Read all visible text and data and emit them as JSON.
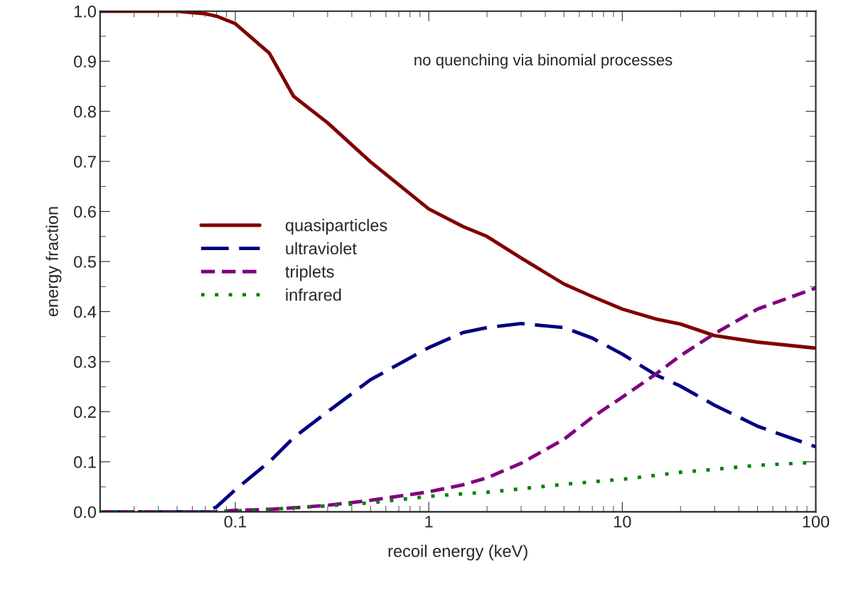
{
  "chart_data": {
    "type": "line",
    "xlabel": "recoil energy (keV)",
    "ylabel": "energy fraction",
    "annotations": [
      "no quenching via binomial processes"
    ],
    "x": [
      0.02,
      0.05,
      0.07,
      0.08,
      0.1,
      0.15,
      0.2,
      0.3,
      0.5,
      1,
      1.5,
      2,
      3,
      5,
      7,
      10,
      15,
      20,
      30,
      50,
      100
    ],
    "series": [
      {
        "name": "quasiparticles",
        "color": "#800000",
        "line_style": "solid",
        "values": [
          1.0,
          1.0,
          0.995,
          0.99,
          0.975,
          0.916,
          0.83,
          0.777,
          0.699,
          0.605,
          0.57,
          0.55,
          0.507,
          0.455,
          0.43,
          0.405,
          0.385,
          0.375,
          0.352,
          0.339,
          0.327
        ]
      },
      {
        "name": "ultraviolet",
        "color": "#000080",
        "line_style": "dashed",
        "values": [
          0,
          0,
          0,
          0.01,
          0.044,
          0.1,
          0.148,
          0.2,
          0.264,
          0.328,
          0.358,
          0.368,
          0.376,
          0.368,
          0.347,
          0.315,
          0.273,
          0.251,
          0.213,
          0.171,
          0.13
        ]
      },
      {
        "name": "triplets",
        "color": "#800080",
        "line_style": "dashed",
        "values": [
          0,
          0,
          0,
          0,
          0.003,
          0.005,
          0.008,
          0.013,
          0.023,
          0.04,
          0.054,
          0.068,
          0.097,
          0.145,
          0.189,
          0.229,
          0.276,
          0.312,
          0.356,
          0.405,
          0.447
        ]
      },
      {
        "name": "infrared",
        "color": "#008000",
        "line_style": "dotted",
        "values": [
          0,
          0,
          0,
          0,
          0.002,
          0.005,
          0.008,
          0.012,
          0.018,
          0.031,
          0.036,
          0.039,
          0.046,
          0.055,
          0.06,
          0.065,
          0.073,
          0.079,
          0.085,
          0.093,
          0.099
        ]
      }
    ],
    "log": "x",
    "xlim": [
      0.02,
      100
    ],
    "xticks": [
      0.1,
      1,
      10,
      100
    ],
    "ylim": [
      0,
      1
    ],
    "yticks": [
      {
        "value": 0,
        "label": "0.0"
      },
      {
        "value": 0.1,
        "label": "0.1"
      },
      {
        "value": 0.2,
        "label": "0.2"
      },
      {
        "value": 0.3,
        "label": "0.3"
      },
      {
        "value": 0.4,
        "label": "0.4"
      },
      {
        "value": 0.5,
        "label": "0.5"
      },
      {
        "value": 0.6,
        "label": "0.6"
      },
      {
        "value": 0.7,
        "label": "0.7"
      },
      {
        "value": 0.8,
        "label": "0.8"
      },
      {
        "value": 0.9,
        "label": "0.9"
      },
      {
        "value": 1,
        "label": "1.0"
      }
    ],
    "grid": false,
    "legend": "center left"
  }
}
